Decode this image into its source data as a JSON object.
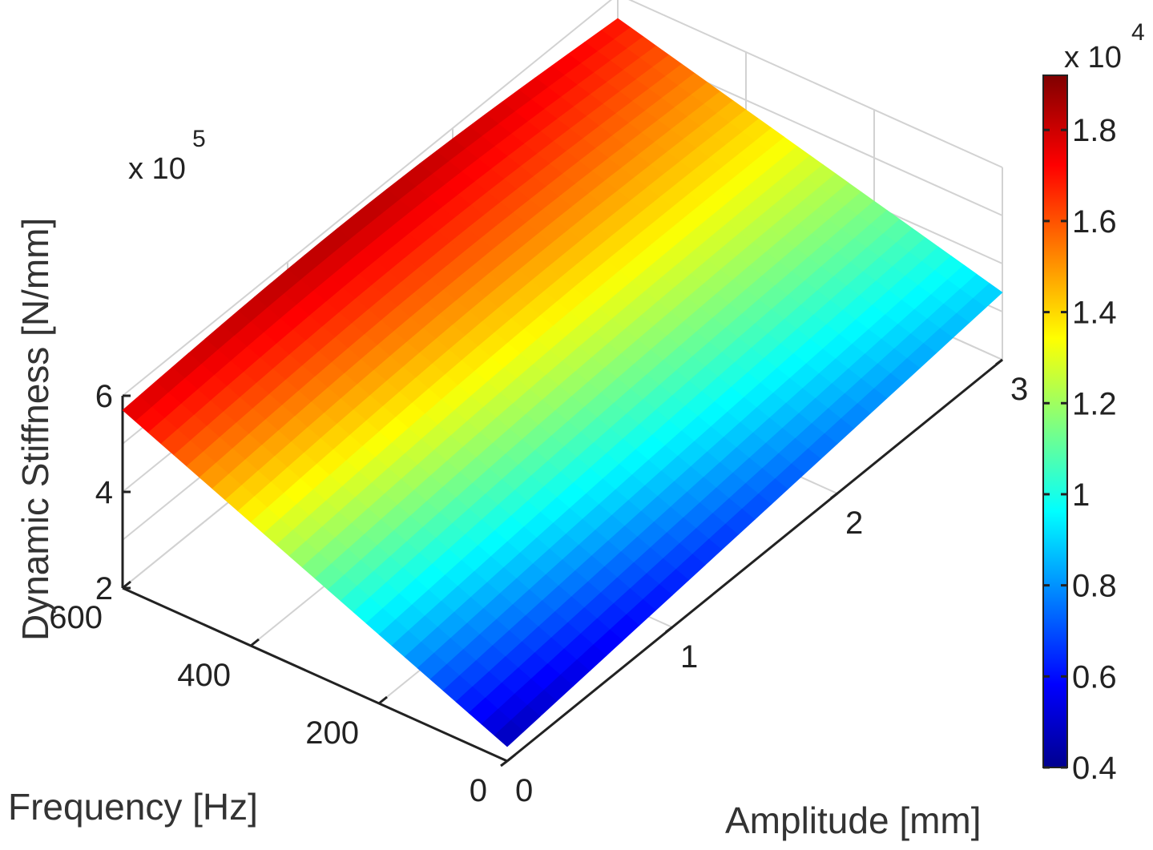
{
  "chart_data": {
    "type": "surface3d",
    "title": "",
    "x_axis": {
      "label": "Amplitude [mm]",
      "ticks": [
        "0",
        "1",
        "2",
        "3"
      ],
      "range": [
        0,
        3
      ]
    },
    "y_axis": {
      "label": "Frequency [Hz]",
      "ticks": [
        "0",
        "200",
        "400",
        "600"
      ],
      "range": [
        0,
        600
      ]
    },
    "z_axis": {
      "label": "Dynamic Stiffness [N/mm]",
      "ticks": [
        "2",
        "4",
        "6"
      ],
      "range": [
        2,
        6
      ],
      "exponent_base": "x 10",
      "exponent_power": "5"
    },
    "colorbar": {
      "ticks": [
        "0.4",
        "0.6",
        "0.8",
        "1",
        "1.2",
        "1.4",
        "1.6",
        "1.8"
      ],
      "range": [
        0.4,
        1.92
      ],
      "exponent_base": "x 10",
      "exponent_power": "4",
      "colormap": "jet"
    },
    "grid": true,
    "surface_corners": [
      {
        "amplitude": 0,
        "frequency": 600,
        "stiffness": 5.7
      },
      {
        "amplitude": 0,
        "frequency": 0,
        "stiffness": 2.3
      },
      {
        "amplitude": 3,
        "frequency": 0,
        "stiffness": 3.4
      },
      {
        "amplitude": 3,
        "frequency": 600,
        "stiffness": 5.5
      }
    ]
  }
}
